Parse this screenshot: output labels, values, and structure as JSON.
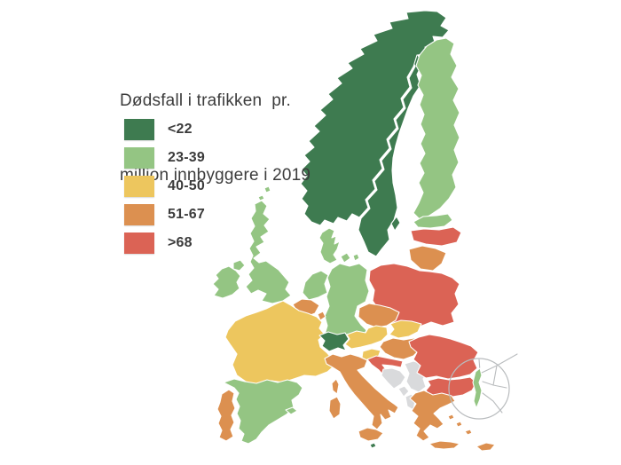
{
  "title": {
    "line1": "Dødsfall i trafikken  pr.",
    "line2": "million innbyggere i 2019"
  },
  "legend": {
    "items": [
      {
        "label": "<22",
        "color": "#3e7b50"
      },
      {
        "label": "23-39",
        "color": "#94c583"
      },
      {
        "label": "40-50",
        "color": "#edc65e"
      },
      {
        "label": "51-67",
        "color": "#dc9050"
      },
      {
        "label": ">68",
        "color": "#db6355"
      }
    ]
  },
  "map": {
    "stroke_color": "#ffffff",
    "category_colors": {
      "<22": "#3e7b50",
      "23-39": "#94c583",
      "40-50": "#edc65e",
      "51-67": "#dc9050",
      ">68": "#db6355",
      "no-data": "#d9dadc"
    },
    "countries": [
      {
        "name": "sweden",
        "category": "<22"
      },
      {
        "name": "norway",
        "category": "<22"
      },
      {
        "name": "finland",
        "category": "23-39"
      },
      {
        "name": "denmark",
        "category": "23-39"
      },
      {
        "name": "estonia",
        "category": "23-39"
      },
      {
        "name": "latvia",
        "category": ">68"
      },
      {
        "name": "lithuania",
        "category": "51-67"
      },
      {
        "name": "poland",
        "category": ">68"
      },
      {
        "name": "germany",
        "category": "23-39"
      },
      {
        "name": "netherlands",
        "category": "23-39"
      },
      {
        "name": "belgium",
        "category": "51-67"
      },
      {
        "name": "luxembourg",
        "category": "51-67"
      },
      {
        "name": "france",
        "category": "40-50"
      },
      {
        "name": "united-kingdom",
        "category": "23-39"
      },
      {
        "name": "ireland",
        "category": "23-39"
      },
      {
        "name": "spain",
        "category": "23-39"
      },
      {
        "name": "portugal",
        "category": "51-67"
      },
      {
        "name": "czechia",
        "category": "51-67"
      },
      {
        "name": "austria",
        "category": "40-50"
      },
      {
        "name": "switzerland",
        "category": "<22"
      },
      {
        "name": "slovakia",
        "category": "40-50"
      },
      {
        "name": "hungary",
        "category": "51-67"
      },
      {
        "name": "slovenia",
        "category": "40-50"
      },
      {
        "name": "croatia",
        "category": ">68"
      },
      {
        "name": "bosnia-herzegovina",
        "category": "no-data"
      },
      {
        "name": "serbia",
        "category": "no-data"
      },
      {
        "name": "montenegro",
        "category": "no-data"
      },
      {
        "name": "albania",
        "category": "no-data"
      },
      {
        "name": "north-macedonia",
        "category": "no-data"
      },
      {
        "name": "romania",
        "category": ">68"
      },
      {
        "name": "bulgaria",
        "category": ">68"
      },
      {
        "name": "greece",
        "category": "51-67"
      },
      {
        "name": "italy",
        "category": "51-67"
      },
      {
        "name": "corsica",
        "category": "51-67"
      },
      {
        "name": "malta",
        "category": "<22"
      },
      {
        "name": "cyprus",
        "category": "51-67"
      },
      {
        "name": "inset-country",
        "category": "23-39"
      }
    ]
  }
}
